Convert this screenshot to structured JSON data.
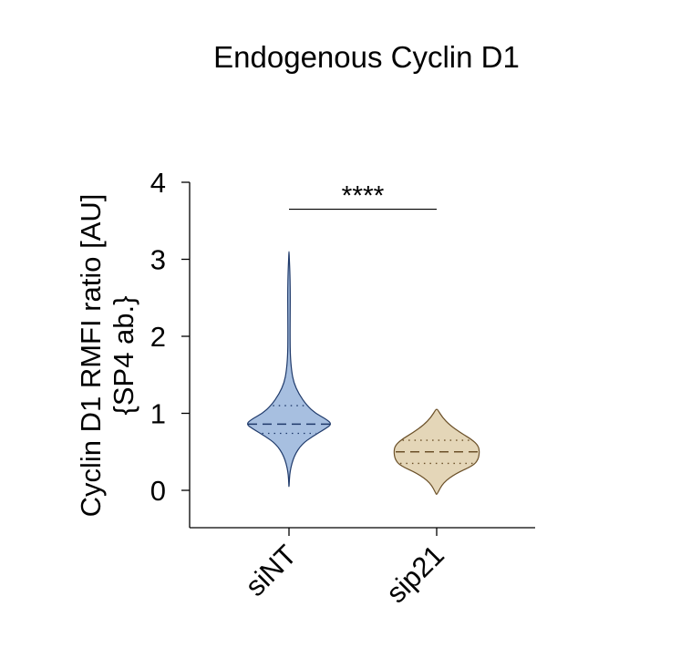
{
  "chart_data": {
    "type": "violin",
    "title": "Endogenous Cyclin D1",
    "ylabel_line1": "Cyclin D1 RMFI ratio [AU]",
    "ylabel_line2": "{SP4 ab.}",
    "xlabel": "",
    "ylim": [
      -0.5,
      4
    ],
    "yticks": [
      0,
      1,
      2,
      3,
      4
    ],
    "categories": [
      "siNT",
      "sip21"
    ],
    "series": [
      {
        "category": "siNT",
        "color": "#a7bfe0",
        "edge_color": "#1f3a6b",
        "median": 0.86,
        "q1": 0.74,
        "q3": 1.1,
        "min": 0.05,
        "max": 3.1,
        "density": [
          [
            0.05,
            0.002
          ],
          [
            0.25,
            0.02
          ],
          [
            0.45,
            0.12
          ],
          [
            0.6,
            0.3
          ],
          [
            0.7,
            0.55
          ],
          [
            0.8,
            0.85
          ],
          [
            0.86,
            1.0
          ],
          [
            0.92,
            0.88
          ],
          [
            1.0,
            0.62
          ],
          [
            1.1,
            0.42
          ],
          [
            1.25,
            0.23
          ],
          [
            1.4,
            0.11
          ],
          [
            1.55,
            0.06
          ],
          [
            1.75,
            0.03
          ],
          [
            2.0,
            0.025
          ],
          [
            2.3,
            0.028
          ],
          [
            2.6,
            0.03
          ],
          [
            2.85,
            0.02
          ],
          [
            3.0,
            0.008
          ],
          [
            3.1,
            0.002
          ]
        ]
      },
      {
        "category": "sip21",
        "color": "#e4d6b8",
        "edge_color": "#6b5028",
        "median": 0.5,
        "q1": 0.35,
        "q3": 0.65,
        "min": -0.05,
        "max": 1.05,
        "density": [
          [
            -0.05,
            0.01
          ],
          [
            0.1,
            0.15
          ],
          [
            0.22,
            0.45
          ],
          [
            0.32,
            0.85
          ],
          [
            0.4,
            0.97
          ],
          [
            0.5,
            1.0
          ],
          [
            0.58,
            0.97
          ],
          [
            0.66,
            0.82
          ],
          [
            0.75,
            0.55
          ],
          [
            0.85,
            0.3
          ],
          [
            0.95,
            0.13
          ],
          [
            1.05,
            0.02
          ]
        ]
      }
    ],
    "annotation": {
      "text": "****",
      "from": "siNT",
      "to": "sip21",
      "y": 3.65
    }
  }
}
